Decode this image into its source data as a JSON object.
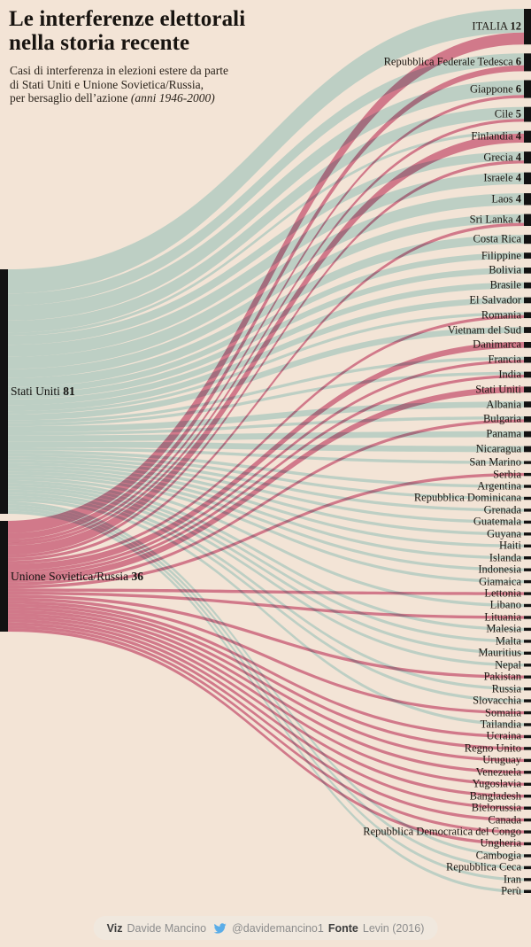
{
  "header": {
    "title_line1": "Le interferenze elettorali",
    "title_line2": "nella storia recente",
    "subtitle_line1": "Casi di interferenza in elezioni estere da parte",
    "subtitle_line2": "di Stati Uniti e Unione Sovietica/Russia,",
    "subtitle_line3_regular": "per bersaglio dell’azione ",
    "subtitle_line3_italic": "(anni 1946-2000)"
  },
  "footer": {
    "viz_label": "Viz",
    "viz_value": "Davide Mancino",
    "twitter_icon": "twitter-bird-icon",
    "twitter_handle": "@davidemancino1",
    "source_label": "Fonte",
    "source_value": "Levin (2016)"
  },
  "chart_data": {
    "type": "sankey",
    "title": "Le interferenze elettorali nella storia recente",
    "unit": "casi di interferenza elettorale",
    "period": "1946-2000",
    "legend_position": "none",
    "colors": {
      "background": "#f3e4d6",
      "us_flow": "#bdcfc4",
      "ussr_flow": "#dc87a4",
      "node": "#121212"
    },
    "sources": [
      {
        "id": "US",
        "label": "Stati Uniti",
        "value": 81,
        "value_label": "81"
      },
      {
        "id": "SU",
        "label": "Unione Sovietica/Russia",
        "value": 36,
        "value_label": "36"
      }
    ],
    "targets": [
      {
        "label": "ITALIA",
        "value": 12,
        "value_label": "12"
      },
      {
        "label": "Repubblica Federale Tedesca",
        "value": 6,
        "value_label": "6"
      },
      {
        "label": "Giappone",
        "value": 6,
        "value_label": "6"
      },
      {
        "label": "Cile",
        "value": 5,
        "value_label": "5"
      },
      {
        "label": "Finlandia",
        "value": 4,
        "value_label": "4"
      },
      {
        "label": "Grecia",
        "value": 4,
        "value_label": "4"
      },
      {
        "label": "Israele",
        "value": 4,
        "value_label": "4"
      },
      {
        "label": "Laos",
        "value": 4,
        "value_label": "4"
      },
      {
        "label": "Sri Lanka",
        "value": 4,
        "value_label": "4"
      },
      {
        "label": "Costa Rica",
        "value": 3,
        "value_label": null
      },
      {
        "label": "Filippine",
        "value": 2,
        "value_label": null
      },
      {
        "label": "Bolivia",
        "value": 2,
        "value_label": null
      },
      {
        "label": "Brasile",
        "value": 2,
        "value_label": null
      },
      {
        "label": "El Salvador",
        "value": 2,
        "value_label": null
      },
      {
        "label": "Romania",
        "value": 2,
        "value_label": null
      },
      {
        "label": "Vietnam del Sud",
        "value": 2,
        "value_label": null
      },
      {
        "label": "Danimarca",
        "value": 2,
        "value_label": null
      },
      {
        "label": "Francia",
        "value": 2,
        "value_label": null
      },
      {
        "label": "India",
        "value": 2,
        "value_label": null
      },
      {
        "label": "Stati Uniti",
        "value": 2,
        "value_label": null
      },
      {
        "label": "Albania",
        "value": 2,
        "value_label": null
      },
      {
        "label": "Bulgaria",
        "value": 2,
        "value_label": null
      },
      {
        "label": "Panama",
        "value": 2,
        "value_label": null
      },
      {
        "label": "Nicaragua",
        "value": 2,
        "value_label": null
      },
      {
        "label": "San Marino",
        "value": 1,
        "value_label": null
      },
      {
        "label": "Serbia",
        "value": 1,
        "value_label": null
      },
      {
        "label": "Argentina",
        "value": 1,
        "value_label": null
      },
      {
        "label": "Repubblica Dominicana",
        "value": 1,
        "value_label": null
      },
      {
        "label": "Grenada",
        "value": 1,
        "value_label": null
      },
      {
        "label": "Guatemala",
        "value": 1,
        "value_label": null
      },
      {
        "label": "Guyana",
        "value": 1,
        "value_label": null
      },
      {
        "label": "Haiti",
        "value": 1,
        "value_label": null
      },
      {
        "label": "Islanda",
        "value": 1,
        "value_label": null
      },
      {
        "label": "Indonesia",
        "value": 1,
        "value_label": null
      },
      {
        "label": "Giamaica",
        "value": 1,
        "value_label": null
      },
      {
        "label": "Lettonia",
        "value": 1,
        "value_label": null
      },
      {
        "label": "Libano",
        "value": 1,
        "value_label": null
      },
      {
        "label": "Lituania",
        "value": 1,
        "value_label": null
      },
      {
        "label": "Malesia",
        "value": 1,
        "value_label": null
      },
      {
        "label": "Malta",
        "value": 1,
        "value_label": null
      },
      {
        "label": "Mauritius",
        "value": 1,
        "value_label": null
      },
      {
        "label": "Nepal",
        "value": 1,
        "value_label": null
      },
      {
        "label": "Pakistan",
        "value": 1,
        "value_label": null
      },
      {
        "label": "Russia",
        "value": 1,
        "value_label": null
      },
      {
        "label": "Slovacchia",
        "value": 1,
        "value_label": null
      },
      {
        "label": "Somalia",
        "value": 1,
        "value_label": null
      },
      {
        "label": "Tailandia",
        "value": 1,
        "value_label": null
      },
      {
        "label": "Ucraina",
        "value": 1,
        "value_label": null
      },
      {
        "label": "Regno Unito",
        "value": 1,
        "value_label": null
      },
      {
        "label": "Uruguay",
        "value": 1,
        "value_label": null
      },
      {
        "label": "Venezuela",
        "value": 1,
        "value_label": null
      },
      {
        "label": "Yugoslavia",
        "value": 1,
        "value_label": null
      },
      {
        "label": "Bangladesh",
        "value": 1,
        "value_label": null
      },
      {
        "label": "Bielorussia",
        "value": 1,
        "value_label": null
      },
      {
        "label": "Canada",
        "value": 1,
        "value_label": null
      },
      {
        "label": "Repubblica Democratica del Congo",
        "value": 1,
        "value_label": null
      },
      {
        "label": "Ungheria",
        "value": 1,
        "value_label": null
      },
      {
        "label": "Cambogia",
        "value": 1,
        "value_label": null
      },
      {
        "label": "Repubblica Ceca",
        "value": 1,
        "value_label": null
      },
      {
        "label": "Iran",
        "value": 1,
        "value_label": null
      },
      {
        "label": "Perù",
        "value": 1,
        "value_label": null
      }
    ],
    "links": [
      {
        "source": "US",
        "target": "ITALIA",
        "value": 8
      },
      {
        "source": "US",
        "target": "Repubblica Federale Tedesca",
        "value": 4
      },
      {
        "source": "US",
        "target": "Giappone",
        "value": 5
      },
      {
        "source": "US",
        "target": "Cile",
        "value": 4
      },
      {
        "source": "US",
        "target": "Finlandia",
        "value": 1
      },
      {
        "source": "US",
        "target": "Grecia",
        "value": 3
      },
      {
        "source": "US",
        "target": "Israele",
        "value": 4
      },
      {
        "source": "US",
        "target": "Laos",
        "value": 4
      },
      {
        "source": "US",
        "target": "Sri Lanka",
        "value": 3
      },
      {
        "source": "US",
        "target": "Costa Rica",
        "value": 3
      },
      {
        "source": "US",
        "target": "Filippine",
        "value": 2
      },
      {
        "source": "US",
        "target": "Bolivia",
        "value": 2
      },
      {
        "source": "US",
        "target": "Brasile",
        "value": 2
      },
      {
        "source": "US",
        "target": "El Salvador",
        "value": 2
      },
      {
        "source": "US",
        "target": "Romania",
        "value": 1
      },
      {
        "source": "US",
        "target": "Vietnam del Sud",
        "value": 2
      },
      {
        "source": "US",
        "target": "Francia",
        "value": 1
      },
      {
        "source": "US",
        "target": "India",
        "value": 1
      },
      {
        "source": "US",
        "target": "Albania",
        "value": 2
      },
      {
        "source": "US",
        "target": "Bulgaria",
        "value": 1
      },
      {
        "source": "US",
        "target": "Panama",
        "value": 2
      },
      {
        "source": "US",
        "target": "Nicaragua",
        "value": 2
      },
      {
        "source": "US",
        "target": "San Marino",
        "value": 1
      },
      {
        "source": "US",
        "target": "Argentina",
        "value": 1
      },
      {
        "source": "US",
        "target": "Repubblica Dominicana",
        "value": 1
      },
      {
        "source": "US",
        "target": "Grenada",
        "value": 1
      },
      {
        "source": "US",
        "target": "Guatemala",
        "value": 1
      },
      {
        "source": "US",
        "target": "Guyana",
        "value": 1
      },
      {
        "source": "US",
        "target": "Haiti",
        "value": 1
      },
      {
        "source": "US",
        "target": "Islanda",
        "value": 1
      },
      {
        "source": "US",
        "target": "Indonesia",
        "value": 1
      },
      {
        "source": "US",
        "target": "Giamaica",
        "value": 1
      },
      {
        "source": "US",
        "target": "Libano",
        "value": 1
      },
      {
        "source": "US",
        "target": "Malesia",
        "value": 1
      },
      {
        "source": "US",
        "target": "Malta",
        "value": 1
      },
      {
        "source": "US",
        "target": "Mauritius",
        "value": 1
      },
      {
        "source": "US",
        "target": "Nepal",
        "value": 1
      },
      {
        "source": "US",
        "target": "Russia",
        "value": 1
      },
      {
        "source": "US",
        "target": "Slovacchia",
        "value": 1
      },
      {
        "source": "US",
        "target": "Tailandia",
        "value": 1
      },
      {
        "source": "US",
        "target": "Cambogia",
        "value": 1
      },
      {
        "source": "US",
        "target": "Repubblica Ceca",
        "value": 1
      },
      {
        "source": "US",
        "target": "Iran",
        "value": 1
      },
      {
        "source": "US",
        "target": "Perù",
        "value": 1
      },
      {
        "source": "SU",
        "target": "ITALIA",
        "value": 4
      },
      {
        "source": "SU",
        "target": "Repubblica Federale Tedesca",
        "value": 2
      },
      {
        "source": "SU",
        "target": "Giappone",
        "value": 1
      },
      {
        "source": "SU",
        "target": "Cile",
        "value": 1
      },
      {
        "source": "SU",
        "target": "Finlandia",
        "value": 3
      },
      {
        "source": "SU",
        "target": "Grecia",
        "value": 1
      },
      {
        "source": "SU",
        "target": "Sri Lanka",
        "value": 1
      },
      {
        "source": "SU",
        "target": "Romania",
        "value": 1
      },
      {
        "source": "SU",
        "target": "Danimarca",
        "value": 2
      },
      {
        "source": "SU",
        "target": "Francia",
        "value": 1
      },
      {
        "source": "SU",
        "target": "India",
        "value": 1
      },
      {
        "source": "SU",
        "target": "Stati Uniti",
        "value": 2
      },
      {
        "source": "SU",
        "target": "Bulgaria",
        "value": 1
      },
      {
        "source": "SU",
        "target": "Serbia",
        "value": 1
      },
      {
        "source": "SU",
        "target": "Lettonia",
        "value": 1
      },
      {
        "source": "SU",
        "target": "Lituania",
        "value": 1
      },
      {
        "source": "SU",
        "target": "Pakistan",
        "value": 1
      },
      {
        "source": "SU",
        "target": "Somalia",
        "value": 1
      },
      {
        "source": "SU",
        "target": "Ucraina",
        "value": 1
      },
      {
        "source": "SU",
        "target": "Regno Unito",
        "value": 1
      },
      {
        "source": "SU",
        "target": "Uruguay",
        "value": 1
      },
      {
        "source": "SU",
        "target": "Venezuela",
        "value": 1
      },
      {
        "source": "SU",
        "target": "Yugoslavia",
        "value": 1
      },
      {
        "source": "SU",
        "target": "Bangladesh",
        "value": 1
      },
      {
        "source": "SU",
        "target": "Bielorussia",
        "value": 1
      },
      {
        "source": "SU",
        "target": "Canada",
        "value": 1
      },
      {
        "source": "SU",
        "target": "Repubblica Democratica del Congo",
        "value": 1
      },
      {
        "source": "SU",
        "target": "Ungheria",
        "value": 1
      }
    ]
  }
}
